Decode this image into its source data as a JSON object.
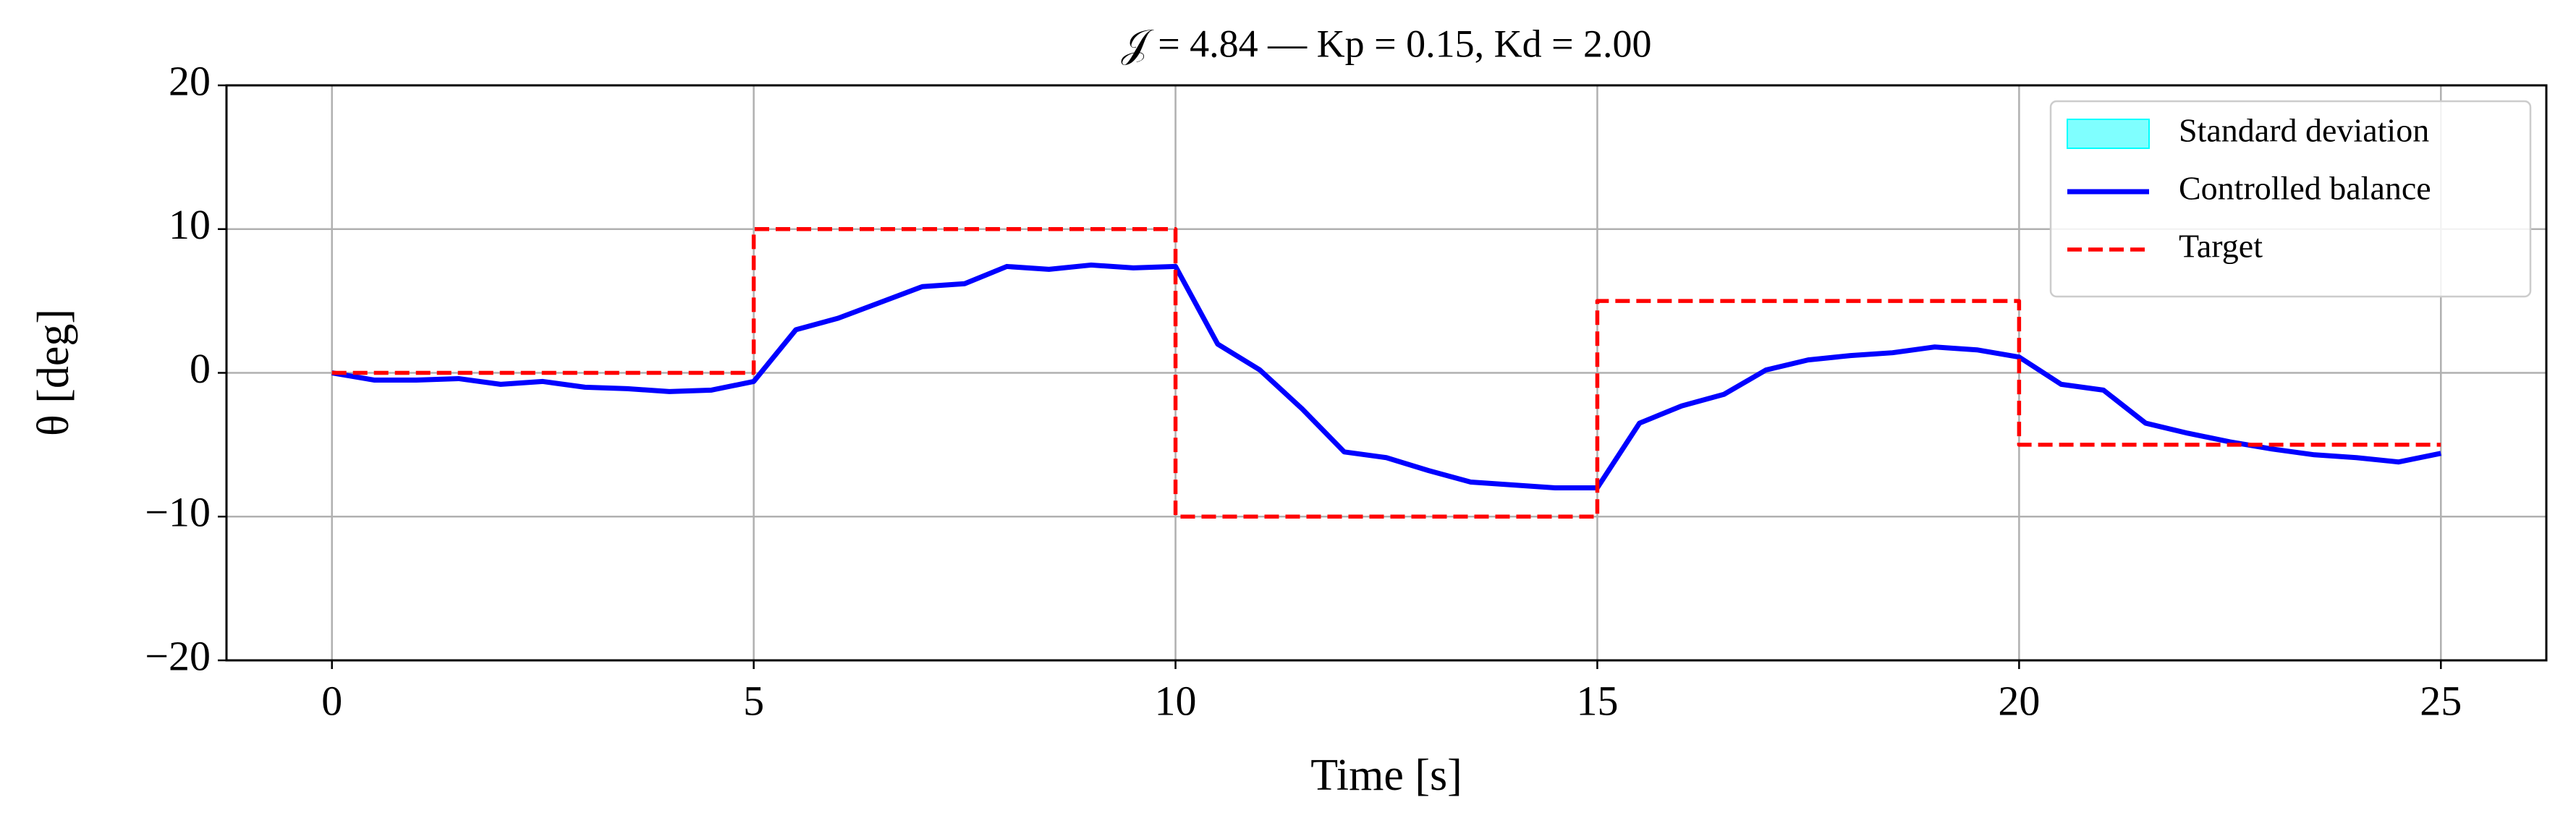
{
  "chart_data": {
    "type": "line",
    "title": "𝒥 = 4.84 — Kp = 0.15, Kd = 2.00",
    "x_label": "Time [s]",
    "y_label": "θ [deg]",
    "xlim": [
      -1.25,
      26.25
    ],
    "ylim": [
      -20,
      20
    ],
    "xticks": [
      0,
      5,
      10,
      15,
      20,
      25
    ],
    "yticks": [
      {
        "value": -20,
        "label": "−20"
      },
      {
        "value": -10,
        "label": "−10"
      },
      0,
      10,
      20
    ],
    "grid": true,
    "legend": "upper right",
    "series": [
      {
        "name": "Standard deviation",
        "color": "#00ffff",
        "style": "band"
      },
      {
        "name": "Controlled balance",
        "color": "#0000ff",
        "style": "solid",
        "x": [
          0,
          0.5,
          1,
          1.5,
          2,
          2.5,
          3,
          3.5,
          4,
          4.5,
          5,
          5.5,
          6,
          6.5,
          7,
          7.5,
          8,
          8.5,
          9,
          9.5,
          10,
          10.5,
          11,
          11.5,
          12,
          12.5,
          13,
          13.5,
          14,
          14.5,
          15,
          15.5,
          16,
          16.5,
          17,
          17.5,
          18,
          18.5,
          19,
          19.5,
          20,
          20.5,
          21,
          21.5,
          22,
          22.5,
          23,
          23.5,
          24,
          24.5,
          25
        ],
        "values": [
          0,
          -0.5,
          -0.5,
          -0.4,
          -0.8,
          -0.6,
          -1.0,
          -1.1,
          -1.3,
          -1.2,
          -0.6,
          3.0,
          3.8,
          4.9,
          6.0,
          6.2,
          7.4,
          7.2,
          7.5,
          7.3,
          7.4,
          2.0,
          0.2,
          -2.5,
          -5.5,
          -5.9,
          -6.8,
          -7.6,
          -7.8,
          -8.0,
          -8.0,
          -3.5,
          -2.3,
          -1.5,
          0.2,
          0.9,
          1.2,
          1.4,
          1.8,
          1.6,
          1.1,
          -0.8,
          -1.2,
          -3.5,
          -4.2,
          -4.8,
          -5.3,
          -5.7,
          -5.9,
          -6.2,
          -5.6
        ]
      },
      {
        "name": "Target",
        "color": "#ff0000",
        "style": "dashed",
        "x": [
          0,
          5,
          5,
          10,
          10,
          15,
          15,
          20,
          20,
          25
        ],
        "values": [
          0,
          0,
          10,
          10,
          -10,
          -10,
          5,
          5,
          -5,
          -5
        ]
      }
    ]
  }
}
